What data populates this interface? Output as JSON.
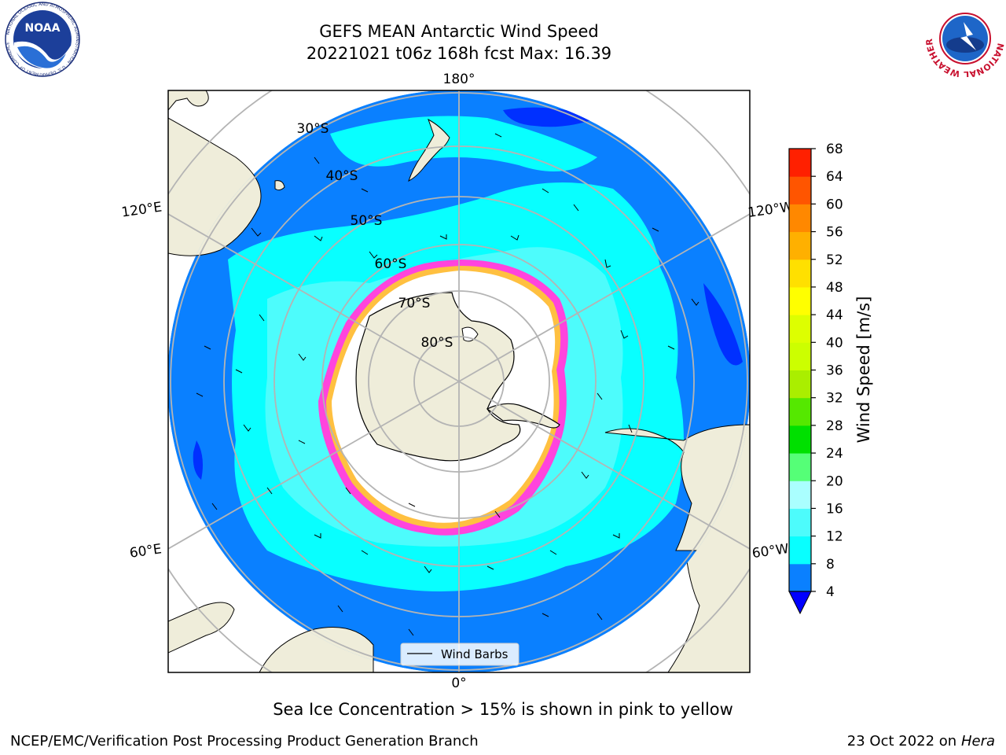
{
  "header": {
    "title_line1": "GEFS MEAN Antarctic Wind Speed",
    "title_line2": "20221021 t06z 168h fcst   Max: 16.39"
  },
  "logos": {
    "left": {
      "name": "noaa-logo",
      "text": "NOAA",
      "ring_text": "NATIONAL OCEANIC AND ATMOSPHERIC ADMINISTRATION · U.S. DEPARTMENT OF COMMERCE"
    },
    "right": {
      "name": "nws-logo",
      "ring_text": "NATIONAL WEATHER SERVICE"
    }
  },
  "map": {
    "projection": "South Polar Stereographic",
    "longitude_labels": [
      "180°",
      "120°E",
      "120°W",
      "60°E",
      "60°W",
      "0°"
    ],
    "latitude_labels": [
      "30°S",
      "40°S",
      "50°S",
      "60°S",
      "70°S",
      "80°S"
    ],
    "legend_label": "Wind Barbs",
    "colors": {
      "land": "#efedda",
      "ice": "#ffffff",
      "ocean_deep": "#0a80ff",
      "ocean_mid": "#08ffff",
      "ocean_light": "#4dfcfc",
      "deep_blue": "#0030ff",
      "ice_edge_pink": "#ff44dd",
      "ice_edge_yellow": "#ffc040",
      "grid": "#b4b4b4"
    }
  },
  "colorbar": {
    "label": "Wind Speed [m/s]",
    "ticks": [
      "4",
      "8",
      "12",
      "16",
      "20",
      "24",
      "28",
      "32",
      "36",
      "40",
      "44",
      "48",
      "52",
      "56",
      "60",
      "64",
      "68"
    ],
    "colors": [
      "#0a80ff",
      "#08ffff",
      "#4dfcfc",
      "#aaffff",
      "#55ff77",
      "#00e000",
      "#55e800",
      "#aaee00",
      "#ccff00",
      "#ddff00",
      "#ffff00",
      "#ffe000",
      "#ffb000",
      "#ff8800",
      "#ff5500",
      "#ff2000"
    ],
    "extend_color": "#0000ff"
  },
  "caption": "Sea Ice Concentration > 15% is shown in pink to yellow",
  "footer": {
    "left": "NCEP/EMC/Verification Post Processing Product Generation Branch",
    "right_prefix": "23 Oct 2022 on ",
    "right_machine": "Hera"
  }
}
